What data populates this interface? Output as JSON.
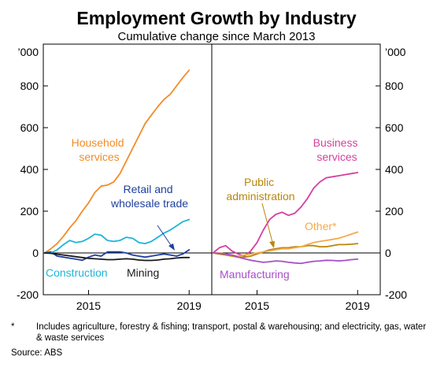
{
  "chart_data": {
    "type": "line",
    "title": "Employment Growth by Industry",
    "subtitle": "Cumulative change since March 2013",
    "y_unit_label": "’000",
    "ylim": [
      -200,
      1000
    ],
    "yticks": [
      "-200",
      "0",
      "200",
      "400",
      "600",
      "800"
    ],
    "xticks": [
      "2015",
      "2019"
    ],
    "x_range": [
      2013.2,
      2019.9
    ],
    "panels": [
      {
        "series": [
          {
            "name": "Household services",
            "label_lines": [
              "Household",
              "services"
            ],
            "color": "#f28c28",
            "x": [
              2013.25,
              2013.5,
              2013.75,
              2014.0,
              2014.25,
              2014.5,
              2014.75,
              2015.0,
              2015.25,
              2015.5,
              2015.75,
              2016.0,
              2016.25,
              2016.5,
              2016.75,
              2017.0,
              2017.25,
              2017.5,
              2017.75,
              2018.0,
              2018.25,
              2018.5,
              2018.75,
              2019.0
            ],
            "values": [
              0,
              20,
              45,
              80,
              120,
              155,
              200,
              240,
              290,
              320,
              325,
              340,
              380,
              440,
              500,
              560,
              620,
              660,
              700,
              735,
              760,
              800,
              840,
              875
            ]
          },
          {
            "name": "Retail and wholesale trade",
            "label_lines": [
              "Retail and",
              "wholesale trade"
            ],
            "color": "#1f3f9f",
            "x": [
              2013.25,
              2013.5,
              2013.75,
              2014.0,
              2014.25,
              2014.5,
              2014.75,
              2015.0,
              2015.25,
              2015.5,
              2015.75,
              2016.0,
              2016.25,
              2016.5,
              2016.75,
              2017.0,
              2017.25,
              2017.5,
              2017.75,
              2018.0,
              2018.25,
              2018.5,
              2018.75,
              2019.0
            ],
            "values": [
              0,
              5,
              -15,
              -20,
              -25,
              -30,
              -35,
              -20,
              -10,
              -15,
              5,
              5,
              5,
              0,
              -10,
              -15,
              -20,
              -15,
              -10,
              -5,
              -10,
              -15,
              -5,
              15
            ]
          },
          {
            "name": "Construction",
            "label_lines": [
              "Construction"
            ],
            "color": "#1fb4d8",
            "x": [
              2013.25,
              2013.5,
              2013.75,
              2014.0,
              2014.25,
              2014.5,
              2014.75,
              2015.0,
              2015.25,
              2015.5,
              2015.75,
              2016.0,
              2016.25,
              2016.5,
              2016.75,
              2017.0,
              2017.25,
              2017.5,
              2017.75,
              2018.0,
              2018.25,
              2018.5,
              2018.75,
              2019.0
            ],
            "values": [
              0,
              0,
              15,
              40,
              60,
              50,
              55,
              70,
              90,
              85,
              60,
              55,
              60,
              75,
              70,
              50,
              45,
              55,
              75,
              95,
              110,
              130,
              150,
              160
            ]
          },
          {
            "name": "Mining",
            "label_lines": [
              "Mining"
            ],
            "color": "#1a1a1a",
            "x": [
              2013.25,
              2013.5,
              2013.75,
              2014.0,
              2014.25,
              2014.5,
              2014.75,
              2015.0,
              2015.25,
              2015.5,
              2015.75,
              2016.0,
              2016.25,
              2016.5,
              2016.75,
              2017.0,
              2017.25,
              2017.5,
              2017.75,
              2018.0,
              2018.25,
              2018.5,
              2018.75,
              2019.0
            ],
            "values": [
              0,
              -2,
              -6,
              -10,
              -14,
              -18,
              -22,
              -26,
              -28,
              -30,
              -32,
              -32,
              -30,
              -28,
              -30,
              -34,
              -36,
              -36,
              -34,
              -30,
              -28,
              -24,
              -22,
              -22
            ]
          }
        ]
      },
      {
        "series": [
          {
            "name": "Business services",
            "label_lines": [
              "Business",
              "services"
            ],
            "color": "#d63fa0",
            "x": [
              2013.25,
              2013.5,
              2013.75,
              2014.0,
              2014.25,
              2014.5,
              2014.75,
              2015.0,
              2015.25,
              2015.5,
              2015.75,
              2016.0,
              2016.25,
              2016.5,
              2016.75,
              2017.0,
              2017.25,
              2017.5,
              2017.75,
              2018.0,
              2018.25,
              2018.5,
              2018.75,
              2019.0
            ],
            "values": [
              0,
              25,
              35,
              10,
              -5,
              -15,
              10,
              50,
              110,
              160,
              185,
              195,
              180,
              190,
              220,
              260,
              310,
              340,
              360,
              365,
              370,
              375,
              380,
              385
            ]
          },
          {
            "name": "Public administration",
            "label_lines": [
              "Public",
              "administration"
            ],
            "color": "#b8860b",
            "x": [
              2013.25,
              2013.5,
              2013.75,
              2014.0,
              2014.25,
              2014.5,
              2014.75,
              2015.0,
              2015.25,
              2015.5,
              2015.75,
              2016.0,
              2016.25,
              2016.5,
              2016.75,
              2017.0,
              2017.25,
              2017.5,
              2017.75,
              2018.0,
              2018.25,
              2018.5,
              2018.75,
              2019.0
            ],
            "values": [
              0,
              -5,
              -10,
              -15,
              -20,
              -20,
              -15,
              -5,
              5,
              15,
              20,
              25,
              25,
              30,
              30,
              35,
              35,
              30,
              30,
              35,
              40,
              40,
              42,
              45
            ]
          },
          {
            "name": "Other*",
            "label_lines": [
              "Other*"
            ],
            "color": "#f5a94a",
            "x": [
              2013.25,
              2013.5,
              2013.75,
              2014.0,
              2014.25,
              2014.5,
              2014.75,
              2015.0,
              2015.25,
              2015.5,
              2015.75,
              2016.0,
              2016.25,
              2016.5,
              2016.75,
              2017.0,
              2017.25,
              2017.5,
              2017.75,
              2018.0,
              2018.25,
              2018.5,
              2018.75,
              2019.0
            ],
            "values": [
              0,
              0,
              -5,
              -10,
              -15,
              -10,
              -5,
              0,
              5,
              10,
              15,
              20,
              20,
              25,
              30,
              40,
              50,
              55,
              60,
              65,
              70,
              80,
              90,
              100
            ]
          },
          {
            "name": "Manufacturing",
            "label_lines": [
              "Manufacturing"
            ],
            "color": "#a64fc9",
            "x": [
              2013.25,
              2013.5,
              2013.75,
              2014.0,
              2014.25,
              2014.5,
              2014.75,
              2015.0,
              2015.25,
              2015.5,
              2015.75,
              2016.0,
              2016.25,
              2016.5,
              2016.75,
              2017.0,
              2017.25,
              2017.5,
              2017.75,
              2018.0,
              2018.25,
              2018.5,
              2018.75,
              2019.0
            ],
            "values": [
              0,
              -2,
              -5,
              -10,
              -20,
              -28,
              -35,
              -40,
              -45,
              -42,
              -38,
              -40,
              -45,
              -48,
              -50,
              -45,
              -40,
              -38,
              -35,
              -36,
              -38,
              -36,
              -32,
              -30
            ]
          }
        ]
      }
    ],
    "footnote_mark": "*",
    "footnote": "Includes agriculture, forestry & fishing; transport, postal & warehousing; and electricity, gas, water & waste services",
    "source": "Source:   ABS"
  }
}
